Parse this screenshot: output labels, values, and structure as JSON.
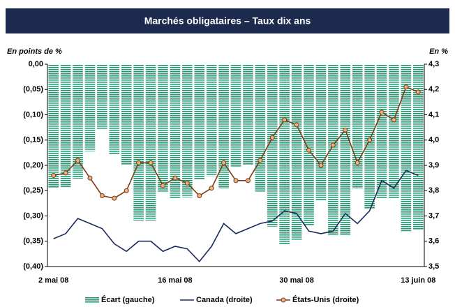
{
  "chart_data": {
    "type": "bar_line",
    "title": "Marchés obligataires – Taux dix ans",
    "y_label": "En points de %",
    "y2_label": "En %",
    "categories": [
      "2 mai 08",
      null,
      null,
      null,
      null,
      null,
      null,
      null,
      null,
      null,
      "16 mai 08",
      null,
      null,
      null,
      null,
      null,
      null,
      null,
      null,
      null,
      "30 mai 08",
      null,
      null,
      null,
      null,
      null,
      null,
      null,
      null,
      null,
      "13 juin 08"
    ],
    "ylim": [
      -0.4,
      0
    ],
    "yticks": [
      {
        "value": 0,
        "label": "0,00"
      },
      {
        "value": -0.05,
        "label": "(0,05)"
      },
      {
        "value": -0.1,
        "label": "(0,10)"
      },
      {
        "value": -0.15,
        "label": "(0,15)"
      },
      {
        "value": -0.2,
        "label": "(0,20)"
      },
      {
        "value": -0.25,
        "label": "(0,25)"
      },
      {
        "value": -0.3,
        "label": "(0,30)"
      },
      {
        "value": -0.35,
        "label": "(0,35)"
      },
      {
        "value": -0.4,
        "label": "(0,40)"
      }
    ],
    "y2lim": [
      3.5,
      4.3
    ],
    "y2ticks": [
      {
        "value": 4.3,
        "label": "4,3"
      },
      {
        "value": 4.2,
        "label": "4,2"
      },
      {
        "value": 4.1,
        "label": "4,1"
      },
      {
        "value": 4.0,
        "label": "4,0"
      },
      {
        "value": 3.9,
        "label": "3,9"
      },
      {
        "value": 3.8,
        "label": "3,8"
      },
      {
        "value": 3.7,
        "label": "3,7"
      },
      {
        "value": 3.6,
        "label": "3,6"
      },
      {
        "value": 3.5,
        "label": "3,5"
      }
    ],
    "series": [
      {
        "name": "Écart (gauche)",
        "kind": "bar",
        "color": "#1f9a6e",
        "values": [
          -0.245,
          -0.243,
          -0.226,
          -0.172,
          -0.128,
          -0.178,
          -0.2,
          -0.309,
          -0.309,
          -0.254,
          -0.266,
          -0.263,
          -0.228,
          -0.221,
          -0.246,
          -0.204,
          -0.199,
          -0.252,
          -0.321,
          -0.357,
          -0.347,
          -0.318,
          -0.269,
          -0.338,
          -0.338,
          -0.246,
          -0.287,
          -0.265,
          -0.266,
          -0.33,
          -0.327
        ]
      },
      {
        "name": "Canada (droite)",
        "kind": "line",
        "axis": "y2",
        "color": "#1c2a5a",
        "values": [
          3.61,
          3.63,
          3.69,
          3.67,
          3.65,
          3.59,
          3.56,
          3.6,
          3.6,
          3.56,
          3.58,
          3.57,
          3.52,
          3.58,
          3.67,
          3.63,
          3.65,
          3.67,
          3.68,
          3.72,
          3.71,
          3.64,
          3.63,
          3.64,
          3.71,
          3.67,
          3.72,
          3.84,
          3.81,
          3.88,
          3.86
        ]
      },
      {
        "name": "États-Unis (droite)",
        "kind": "line_marker",
        "axis": "y2",
        "color": "#7a3b16",
        "marker_color": "#e9b27e",
        "values": [
          3.86,
          3.87,
          3.92,
          3.85,
          3.78,
          3.77,
          3.8,
          3.91,
          3.91,
          3.82,
          3.85,
          3.83,
          3.78,
          3.81,
          3.91,
          3.84,
          3.84,
          3.92,
          4.01,
          4.08,
          4.06,
          3.96,
          3.9,
          3.98,
          4.04,
          3.91,
          4.0,
          4.11,
          4.08,
          4.21,
          4.19
        ]
      }
    ]
  }
}
